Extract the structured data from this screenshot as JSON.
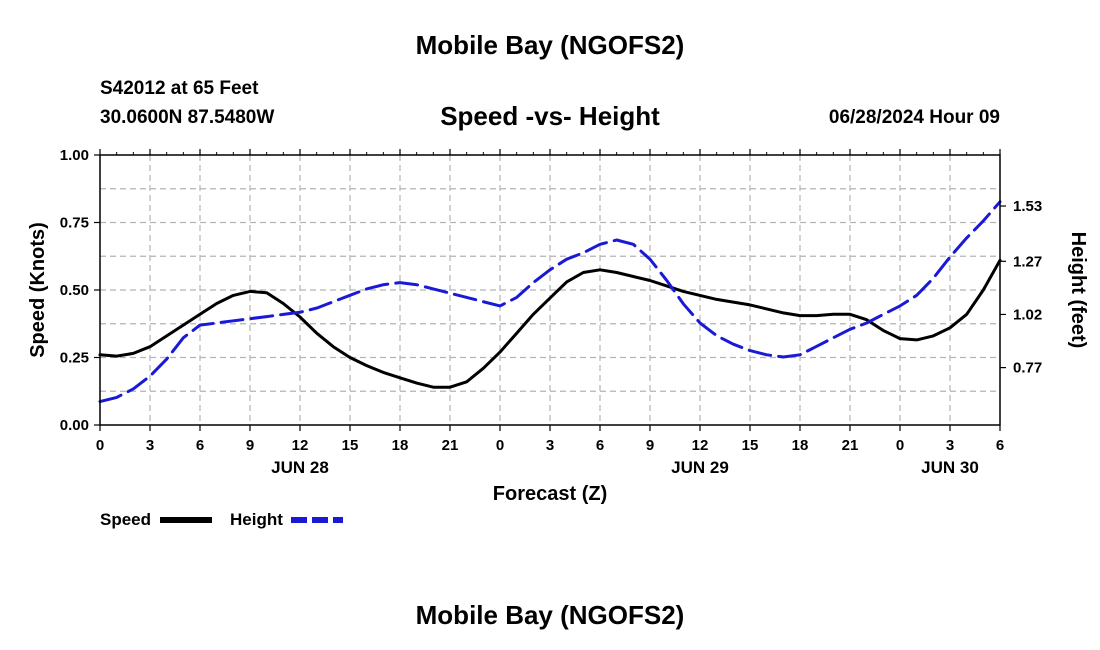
{
  "header": {
    "title": "Mobile Bay (NGOFS2)",
    "station": "S42012 at 65 Feet",
    "coordinates": "30.0600N  87.5480W",
    "date": "06/28/2024 Hour 09"
  },
  "footer": {
    "title": "Mobile Bay (NGOFS2)"
  },
  "chart_data": {
    "type": "line",
    "title": "Speed -vs- Height",
    "xlabel": "Forecast (Z)",
    "ylabel": "Speed (Knots)",
    "y2label": "Height (feet)",
    "x_unit": "hours since 06/28 00Z",
    "xlim": [
      0,
      54
    ],
    "ylim": [
      0,
      1.0
    ],
    "y2lim": [
      0.5,
      1.77
    ],
    "x_ticks": [
      0,
      3,
      6,
      9,
      12,
      15,
      18,
      21,
      24,
      27,
      30,
      33,
      36,
      39,
      42,
      45,
      48,
      51,
      54
    ],
    "x_tick_labels": [
      "0",
      "3",
      "6",
      "9",
      "12",
      "15",
      "18",
      "21",
      "0",
      "3",
      "6",
      "9",
      "12",
      "15",
      "18",
      "21",
      "0",
      "3",
      "6"
    ],
    "date_labels": [
      {
        "x": 12,
        "label": "JUN 28"
      },
      {
        "x": 36,
        "label": "JUN 29"
      },
      {
        "x": 51,
        "label": "JUN 30"
      }
    ],
    "y_ticks": [
      0.0,
      0.25,
      0.5,
      0.75,
      1.0
    ],
    "y_tick_labels": [
      "0.00",
      "0.25",
      "0.50",
      "0.75",
      "1.00"
    ],
    "y2_ticks": [
      0.77,
      1.02,
      1.27,
      1.53
    ],
    "y2_tick_labels": [
      "0.77",
      "1.02",
      "1.27",
      "1.53"
    ],
    "grid": true,
    "legend": "bottom-left",
    "series": [
      {
        "name": "Speed",
        "axis": "left",
        "color": "#000000",
        "style": "solid",
        "points": [
          [
            0,
            0.26
          ],
          [
            1,
            0.255
          ],
          [
            2,
            0.265
          ],
          [
            3,
            0.29
          ],
          [
            4,
            0.33
          ],
          [
            5,
            0.37
          ],
          [
            6,
            0.41
          ],
          [
            7,
            0.45
          ],
          [
            8,
            0.48
          ],
          [
            9,
            0.495
          ],
          [
            10,
            0.49
          ],
          [
            11,
            0.45
          ],
          [
            12,
            0.4
          ],
          [
            13,
            0.34
          ],
          [
            14,
            0.29
          ],
          [
            15,
            0.25
          ],
          [
            16,
            0.22
          ],
          [
            17,
            0.195
          ],
          [
            18,
            0.175
          ],
          [
            19,
            0.155
          ],
          [
            20,
            0.14
          ],
          [
            21,
            0.14
          ],
          [
            22,
            0.16
          ],
          [
            23,
            0.21
          ],
          [
            24,
            0.27
          ],
          [
            25,
            0.34
          ],
          [
            26,
            0.41
          ],
          [
            27,
            0.47
          ],
          [
            28,
            0.53
          ],
          [
            29,
            0.565
          ],
          [
            30,
            0.575
          ],
          [
            31,
            0.565
          ],
          [
            32,
            0.55
          ],
          [
            33,
            0.535
          ],
          [
            34,
            0.515
          ],
          [
            35,
            0.495
          ],
          [
            36,
            0.48
          ],
          [
            37,
            0.465
          ],
          [
            38,
            0.455
          ],
          [
            39,
            0.445
          ],
          [
            40,
            0.43
          ],
          [
            41,
            0.415
          ],
          [
            42,
            0.405
          ],
          [
            43,
            0.405
          ],
          [
            44,
            0.41
          ],
          [
            45,
            0.41
          ],
          [
            46,
            0.39
          ],
          [
            47,
            0.35
          ],
          [
            48,
            0.32
          ],
          [
            49,
            0.315
          ],
          [
            50,
            0.33
          ],
          [
            51,
            0.36
          ],
          [
            52,
            0.41
          ],
          [
            53,
            0.5
          ],
          [
            54,
            0.61
          ]
        ]
      },
      {
        "name": "Height",
        "axis": "right",
        "color": "#1a1ad6",
        "style": "dashed",
        "points": [
          [
            0,
            0.61
          ],
          [
            1,
            0.63
          ],
          [
            2,
            0.67
          ],
          [
            3,
            0.73
          ],
          [
            4,
            0.81
          ],
          [
            5,
            0.91
          ],
          [
            6,
            0.97
          ],
          [
            7,
            0.98
          ],
          [
            8,
            0.99
          ],
          [
            9,
            1.0
          ],
          [
            10,
            1.01
          ],
          [
            11,
            1.02
          ],
          [
            12,
            1.03
          ],
          [
            13,
            1.05
          ],
          [
            14,
            1.08
          ],
          [
            15,
            1.11
          ],
          [
            16,
            1.14
          ],
          [
            17,
            1.16
          ],
          [
            18,
            1.17
          ],
          [
            19,
            1.16
          ],
          [
            20,
            1.14
          ],
          [
            21,
            1.12
          ],
          [
            22,
            1.1
          ],
          [
            23,
            1.08
          ],
          [
            24,
            1.06
          ],
          [
            25,
            1.1
          ],
          [
            26,
            1.17
          ],
          [
            27,
            1.23
          ],
          [
            28,
            1.28
          ],
          [
            29,
            1.31
          ],
          [
            30,
            1.35
          ],
          [
            31,
            1.37
          ],
          [
            32,
            1.35
          ],
          [
            33,
            1.28
          ],
          [
            34,
            1.18
          ],
          [
            35,
            1.07
          ],
          [
            36,
            0.98
          ],
          [
            37,
            0.92
          ],
          [
            38,
            0.88
          ],
          [
            39,
            0.85
          ],
          [
            40,
            0.83
          ],
          [
            41,
            0.82
          ],
          [
            42,
            0.83
          ],
          [
            43,
            0.87
          ],
          [
            44,
            0.91
          ],
          [
            45,
            0.95
          ],
          [
            46,
            0.98
          ],
          [
            47,
            1.02
          ],
          [
            48,
            1.06
          ],
          [
            49,
            1.11
          ],
          [
            50,
            1.19
          ],
          [
            51,
            1.29
          ],
          [
            52,
            1.38
          ],
          [
            53,
            1.46
          ],
          [
            54,
            1.55
          ]
        ]
      }
    ]
  }
}
